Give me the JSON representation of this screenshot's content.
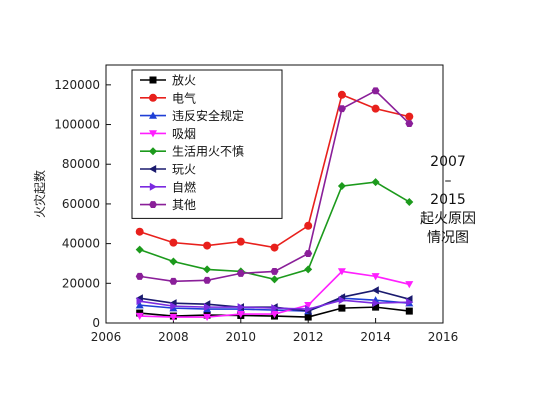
{
  "chart_data": {
    "type": "line",
    "title_lines": [
      "2007",
      "–",
      "2015",
      "起火原因",
      "情况图"
    ],
    "xlabel": "",
    "ylabel": "火灾起数",
    "xlim": [
      2006,
      2016
    ],
    "ylim": [
      0,
      130000
    ],
    "x_ticks": [
      2006,
      2008,
      2010,
      2012,
      2014,
      2016
    ],
    "y_ticks": [
      0,
      20000,
      40000,
      60000,
      80000,
      100000,
      120000
    ],
    "x": [
      2007,
      2008,
      2009,
      2010,
      2011,
      2012,
      2013,
      2014,
      2015
    ],
    "legend_position": "top-left",
    "series": [
      {
        "name": "放火",
        "color": "#000000",
        "marker": "square",
        "values": [
          5000,
          3500,
          4000,
          3800,
          3500,
          3000,
          7500,
          8000,
          6000
        ]
      },
      {
        "name": "电气",
        "color": "#e8201c",
        "marker": "circle",
        "values": [
          46000,
          40500,
          39000,
          41000,
          38000,
          49000,
          115000,
          108000,
          104000
        ]
      },
      {
        "name": "违反安全规定",
        "color": "#1f3fd6",
        "marker": "triangle-up",
        "values": [
          9000,
          7500,
          7000,
          7000,
          6500,
          6000,
          12500,
          11500,
          10000
        ]
      },
      {
        "name": "吸烟",
        "color": "#ff1fff",
        "marker": "triangle-down",
        "values": [
          3500,
          3000,
          3000,
          4500,
          4500,
          9000,
          26000,
          23500,
          19500
        ]
      },
      {
        "name": "生活用火不慎",
        "color": "#1c9a1c",
        "marker": "diamond",
        "values": [
          37000,
          31000,
          27000,
          26000,
          22000,
          27000,
          69000,
          71000,
          61000
        ]
      },
      {
        "name": "玩火",
        "color": "#1a1a6e",
        "marker": "triangle-left",
        "values": [
          12500,
          10000,
          9500,
          8000,
          8000,
          6000,
          13000,
          16500,
          12000
        ]
      },
      {
        "name": "自燃",
        "color": "#7b2ae0",
        "marker": "triangle-right",
        "values": [
          11000,
          8500,
          8000,
          8000,
          7500,
          7000,
          11500,
          10000,
          10500
        ]
      },
      {
        "name": "其他",
        "color": "#8a1f99",
        "marker": "hexagon",
        "values": [
          23500,
          21000,
          21500,
          25000,
          26000,
          35000,
          108000,
          117000,
          100500
        ]
      }
    ]
  }
}
